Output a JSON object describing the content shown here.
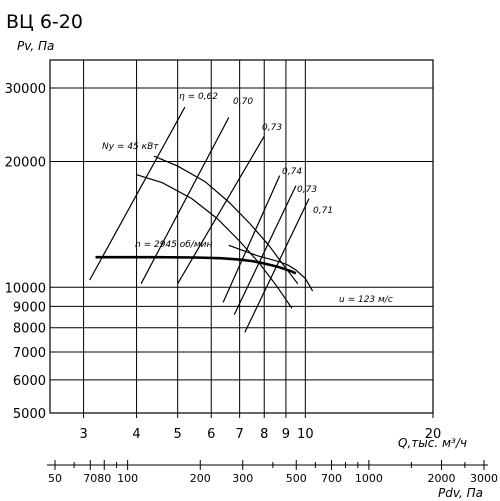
{
  "chart_data": {
    "type": "line",
    "title": "ВЦ 6-20",
    "ylabel": "Pv, Па",
    "xlabel": "Q,тыс. м³/ч",
    "x2label": "Pdv, Па",
    "x_scale": "log",
    "y_scale": "log",
    "xlim": [
      2.5,
      20
    ],
    "ylim": [
      5000,
      35000
    ],
    "x_ticks": [
      {
        "value": 3,
        "label": "3"
      },
      {
        "value": 4,
        "label": "4"
      },
      {
        "value": 5,
        "label": "5"
      },
      {
        "value": 6,
        "label": "6"
      },
      {
        "value": 7,
        "label": "7"
      },
      {
        "value": 8,
        "label": "8"
      },
      {
        "value": 9,
        "label": "9"
      },
      {
        "value": 10,
        "label": "10"
      },
      {
        "value": 20,
        "label": "20"
      }
    ],
    "y_ticks": [
      {
        "value": 5000,
        "label": "5000"
      },
      {
        "value": 6000,
        "label": "6000"
      },
      {
        "value": 7000,
        "label": "7000"
      },
      {
        "value": 8000,
        "label": "8000"
      },
      {
        "value": 9000,
        "label": "9000"
      },
      {
        "value": 10000,
        "label": "10000"
      },
      {
        "value": 20000,
        "label": "20000"
      },
      {
        "value": 30000,
        "label": "30000"
      }
    ],
    "pdv_ticks": [
      {
        "value": 50,
        "label": "50"
      },
      {
        "value": 70,
        "label": "70"
      },
      {
        "value": 80,
        "label": "80"
      },
      {
        "value": 100,
        "label": "100"
      },
      {
        "value": 200,
        "label": "200"
      },
      {
        "value": 300,
        "label": "300"
      },
      {
        "value": 500,
        "label": "500"
      },
      {
        "value": 700,
        "label": "700"
      },
      {
        "value": 1000,
        "label": "1000"
      },
      {
        "value": 2000,
        "label": "2000"
      },
      {
        "value": 3000,
        "label": "3000"
      }
    ],
    "pdv_minor": [
      60,
      90,
      400,
      600,
      800,
      900,
      1500,
      2500
    ],
    "grid": true,
    "series": [
      {
        "name": "n = 2945 об/мин",
        "style": "thick",
        "x": [
          3.2,
          4.5,
          5.5,
          6.3,
          7.0,
          7.5,
          8.0,
          8.6,
          9.2,
          9.5
        ],
        "y": [
          11800,
          11800,
          11780,
          11740,
          11650,
          11550,
          11400,
          11200,
          10950,
          10800
        ]
      },
      {
        "name": "Nу = 45 кВт",
        "x": [
          4.4,
          5.0,
          5.8,
          6.6,
          7.4,
          8.2,
          9.0,
          9.6
        ],
        "y": [
          20600,
          19500,
          17900,
          16000,
          14200,
          12600,
          11100,
          10200
        ]
      },
      {
        "name": "",
        "x": [
          4.0,
          4.6,
          5.4,
          6.2,
          7.0,
          7.8,
          8.6,
          9.3
        ],
        "y": [
          18600,
          17800,
          16300,
          14600,
          12900,
          11400,
          10000,
          8900
        ]
      },
      {
        "name": "",
        "x": [
          6.6,
          7.2,
          7.7,
          8.2,
          8.7,
          9.1,
          9.5,
          10.0,
          10.4
        ],
        "y": [
          12600,
          12200,
          11900,
          11700,
          11500,
          11300,
          11000,
          10500,
          9800
        ]
      }
    ],
    "efficiency_lines": [
      {
        "label": "η = 0,62",
        "x": [
          3.1,
          5.2
        ],
        "y": [
          10400,
          27000
        ]
      },
      {
        "label": "0,70",
        "x": [
          4.1,
          6.6
        ],
        "y": [
          10200,
          25500
        ]
      },
      {
        "label": "0,73",
        "x": [
          5.0,
          8.0
        ],
        "y": [
          10200,
          23000
        ]
      },
      {
        "label": "0,74",
        "x": [
          6.4,
          8.7
        ],
        "y": [
          9200,
          18500
        ]
      },
      {
        "label": "0,73",
        "x": [
          6.8,
          9.5
        ],
        "y": [
          8600,
          17500
        ]
      },
      {
        "label": "0,71",
        "x": [
          7.2,
          10.2
        ],
        "y": [
          7800,
          16300
        ]
      }
    ],
    "speed_label": "u = 123 м/с",
    "annotations": [
      "η = 0,62",
      "0,70",
      "0,73",
      "0,74",
      "0,73",
      "0,71",
      "Nу = 45 кВт",
      "n = 2945 об/мин",
      "u = 123 м/с"
    ]
  }
}
